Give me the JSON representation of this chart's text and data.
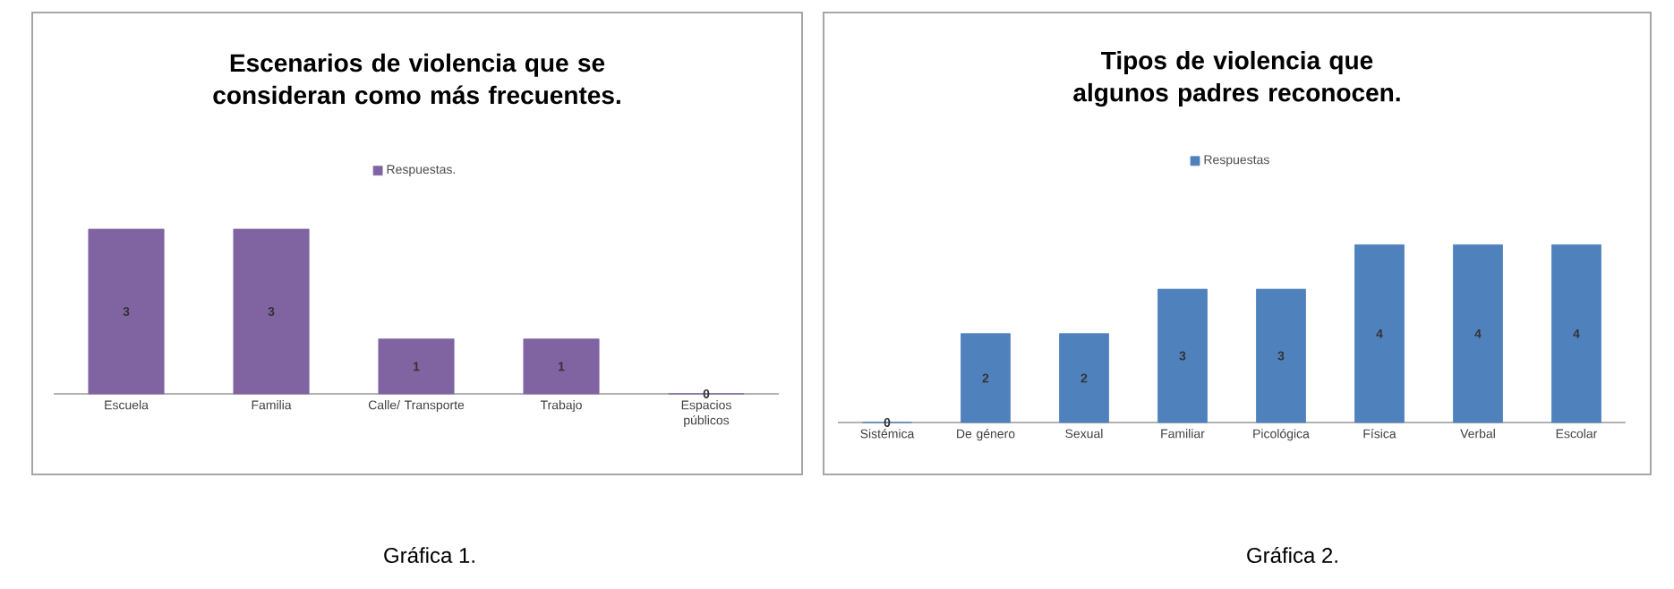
{
  "chart_data": [
    {
      "type": "bar",
      "title": "Escenarios de violencia que se consideran como más frecuentes.",
      "categories": [
        "Escuela",
        "Familia",
        "Calle/ Transporte",
        "Trabajo",
        "Espacios públicos"
      ],
      "series": [
        {
          "name": "Respuestas.",
          "color": "#8064a2",
          "values": [
            3,
            3,
            1,
            1,
            0
          ]
        }
      ],
      "data_labels": true,
      "legend": "top",
      "annotations": [
        "Gráfica 1."
      ]
    },
    {
      "type": "bar",
      "title": "Tipos de violencia que algunos padres reconocen.",
      "categories": [
        "Sistémica",
        "De género",
        "Sexual",
        "Familiar",
        "Picológica",
        "Física",
        "Verbal",
        "Escolar"
      ],
      "series": [
        {
          "name": "Respuestas",
          "color": "#4f81bd",
          "values": [
            0,
            2,
            2,
            3,
            3,
            4,
            4,
            4
          ]
        }
      ],
      "data_labels": true,
      "legend": "top",
      "annotations": [
        "Gráfica 2."
      ]
    }
  ]
}
